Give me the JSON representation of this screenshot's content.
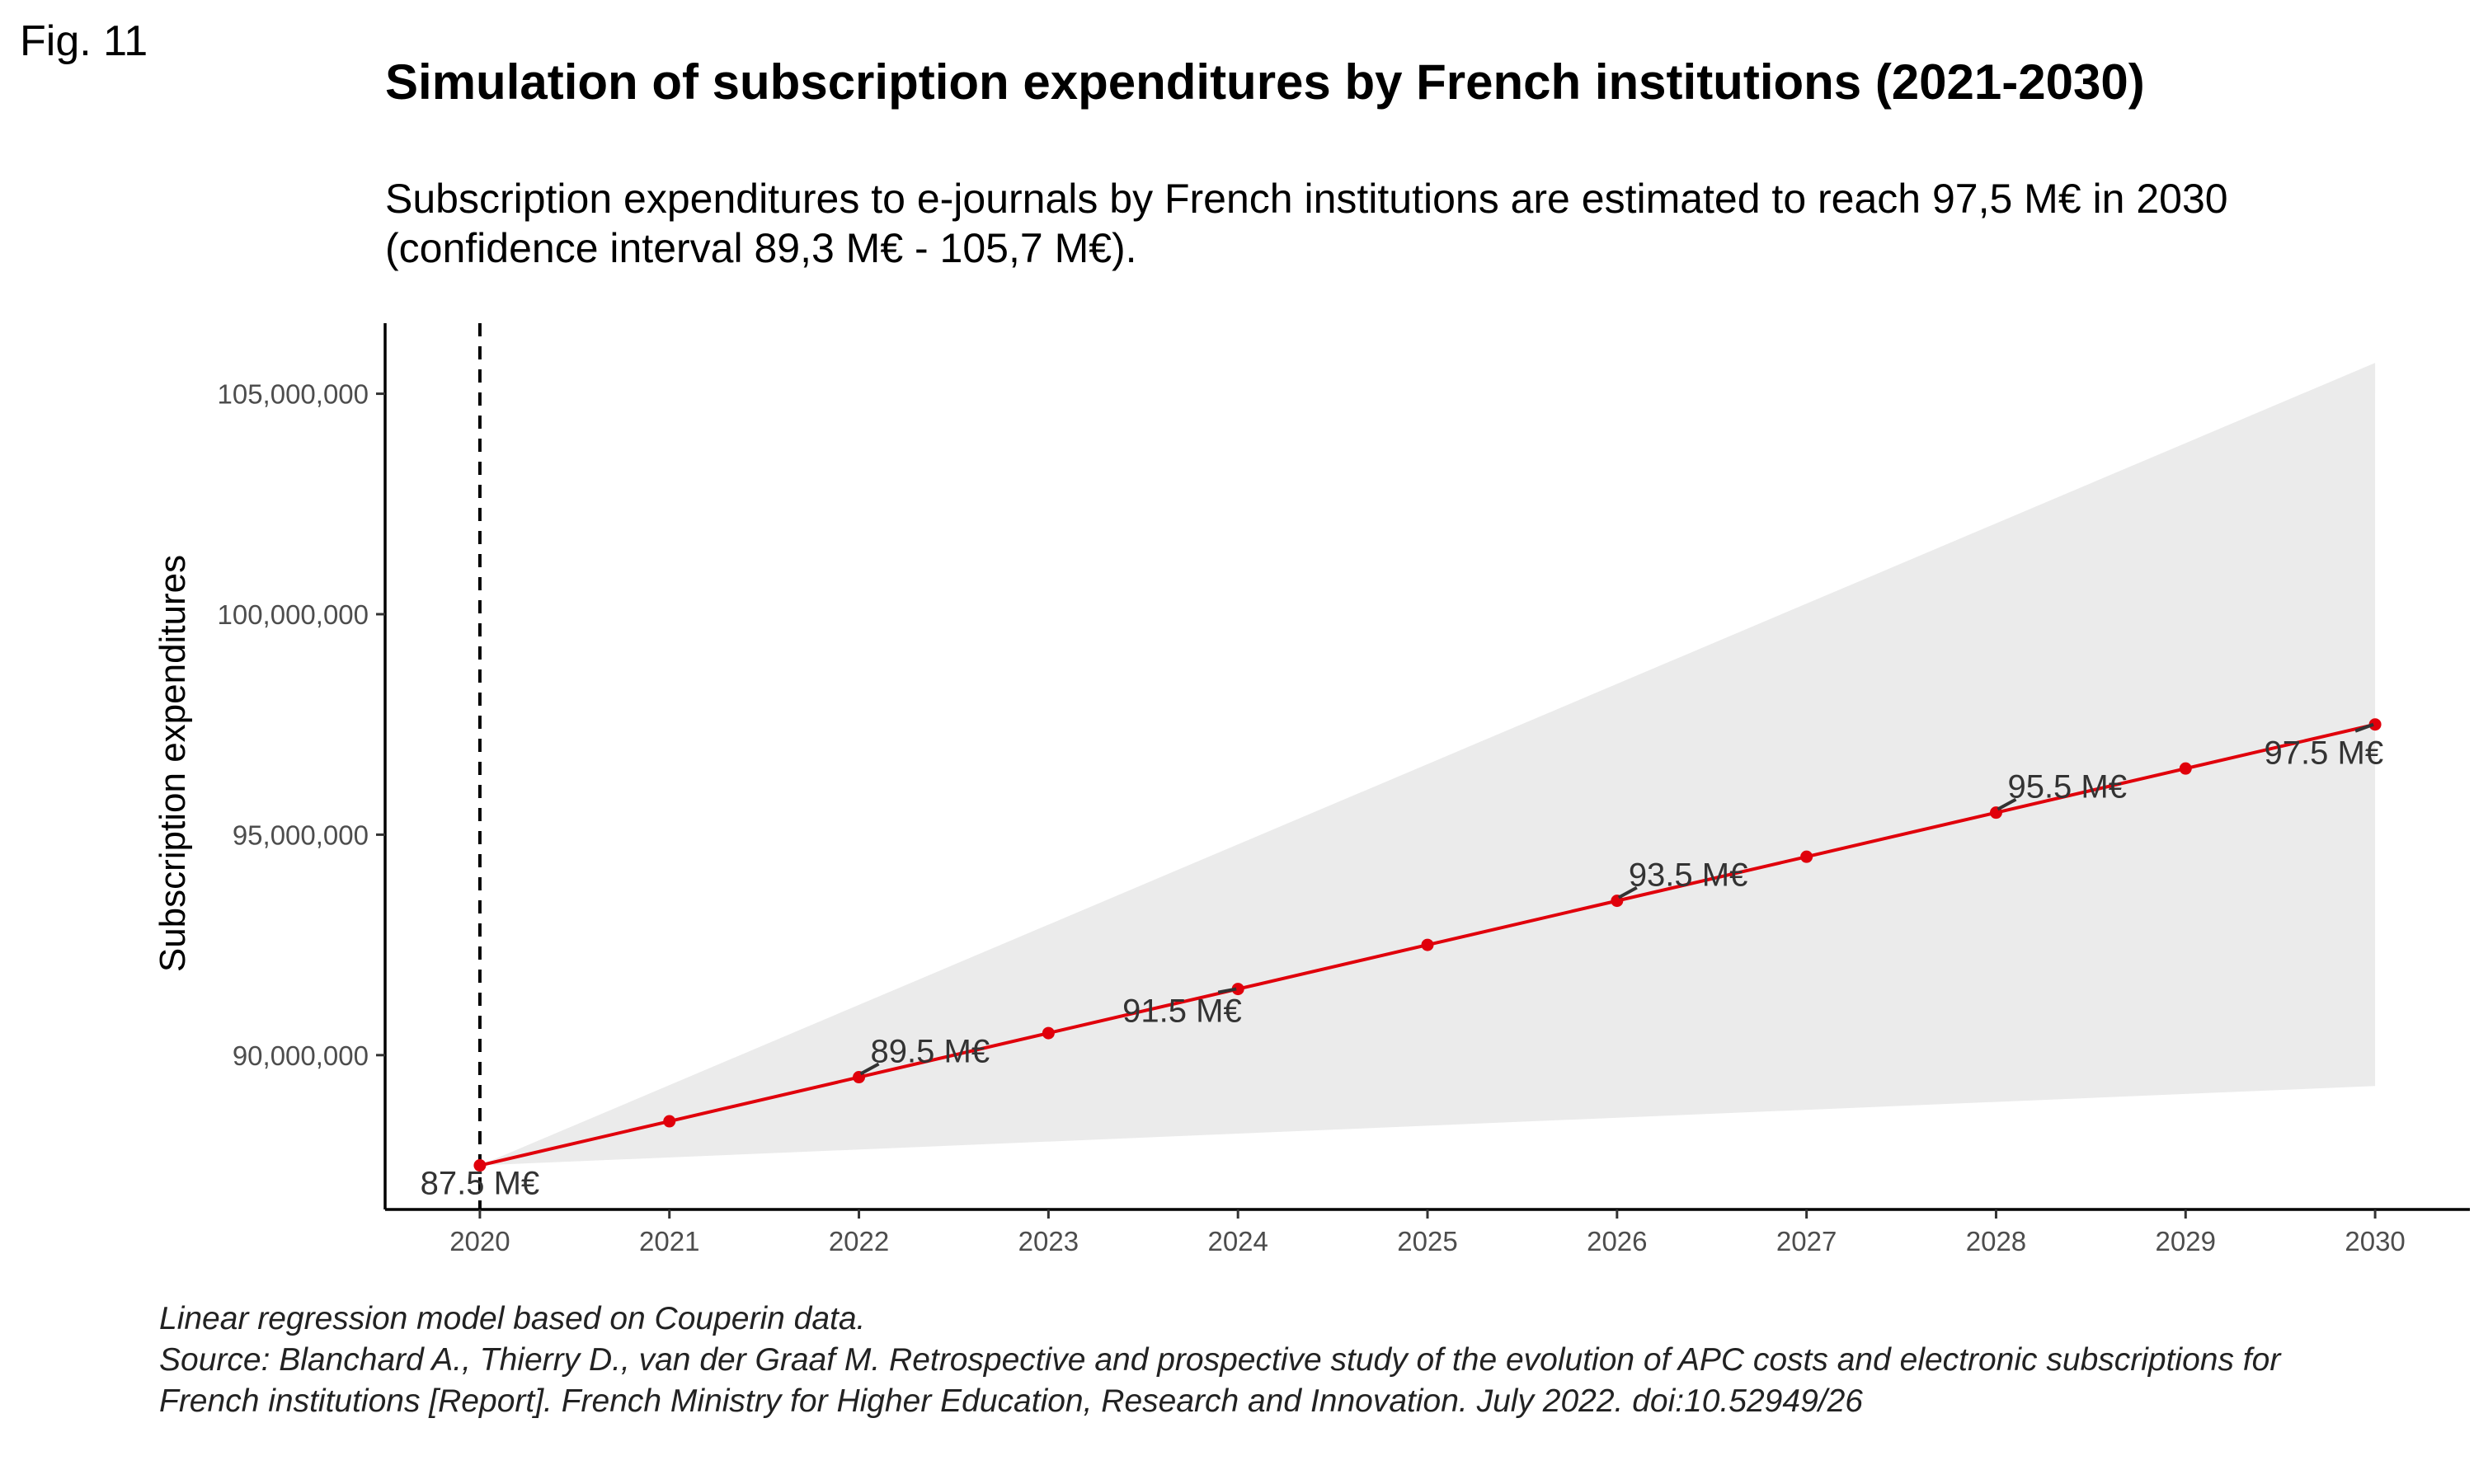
{
  "figure": {
    "label": "Fig. 11"
  },
  "chart_data": {
    "type": "line",
    "title": "Simulation of subscription expenditures by French institutions (2021-2030)",
    "subtitle_lines": [
      "Subscription expenditures to e-journals by French institutions are estimated to reach 97,5 M€ in 2030",
      "(confidence interval 89,3 M€ - 105,7 M€)."
    ],
    "xlabel": "",
    "ylabel": "Subscription expenditures",
    "xlim": [
      2019.5,
      2030.5
    ],
    "ylim": [
      86500000,
      106600000
    ],
    "x_ticks": [
      2020,
      2021,
      2022,
      2023,
      2024,
      2025,
      2026,
      2027,
      2028,
      2029,
      2030
    ],
    "y_ticks": [
      {
        "value": 90000000,
        "label": "90,000,000"
      },
      {
        "value": 95000000,
        "label": "95,000,000"
      },
      {
        "value": 100000000,
        "label": "100,000,000"
      },
      {
        "value": 105000000,
        "label": "105,000,000"
      }
    ],
    "reference_line": {
      "x": 2020,
      "style": "dashed"
    },
    "grid": false,
    "legend": "none",
    "series": [
      {
        "color": "#e0000b",
        "x": [
          2020,
          2021,
          2022,
          2023,
          2024,
          2025,
          2026,
          2027,
          2028,
          2029,
          2030
        ],
        "values": [
          87500000,
          88500000,
          89500000,
          90500000,
          91500000,
          92500000,
          93500000,
          94500000,
          95500000,
          96500000,
          97500000
        ]
      }
    ],
    "confidence_band": {
      "color": "#ebebeb",
      "x": [
        2020,
        2030
      ],
      "lower": [
        87500000,
        89300000
      ],
      "upper": [
        87500000,
        105700000
      ]
    },
    "annotations": [
      {
        "x": 2020,
        "y": 87500000,
        "text": "87.5 M€"
      },
      {
        "x": 2022,
        "y": 89500000,
        "text": "89.5 M€"
      },
      {
        "x": 2024,
        "y": 91500000,
        "text": "91.5 M€"
      },
      {
        "x": 2026,
        "y": 93500000,
        "text": "93.5 M€"
      },
      {
        "x": 2028,
        "y": 95500000,
        "text": "95.5 M€"
      },
      {
        "x": 2030,
        "y": 97500000,
        "text": "97.5 M€"
      }
    ]
  },
  "caption": {
    "lines": [
      "Linear regression model based on Couperin data.",
      "Source: Blanchard A., Thierry D., van der Graaf M. Retrospective and prospective study of the evolution of APC costs and electronic subscriptions for",
      "French institutions [Report]. French Ministry for Higher Education, Research and Innovation. July 2022. doi:10.52949/26"
    ]
  },
  "colors": {
    "line": "#e0000b",
    "point": "#e0000b",
    "band": "#ebebeb",
    "axis": "#000000",
    "tick_text": "#4d4d4d",
    "label_text": "#333333"
  }
}
